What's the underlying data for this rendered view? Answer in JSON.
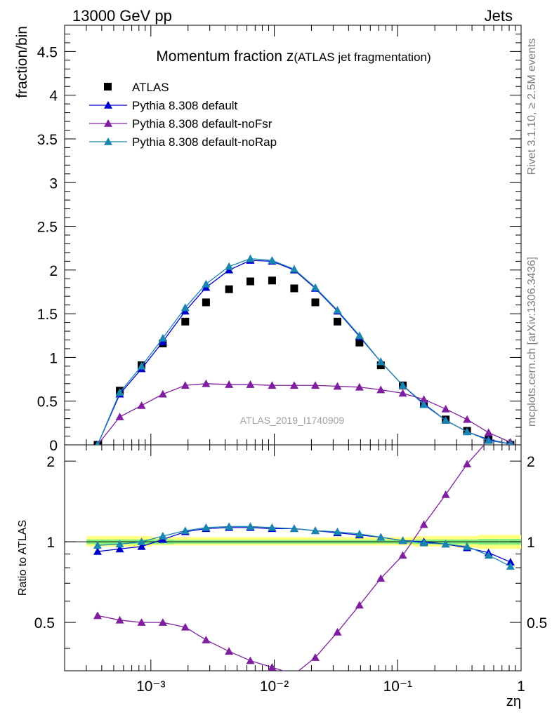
{
  "header": {
    "left": "13000 GeV pp",
    "right": "Jets"
  },
  "side": {
    "top": "Rivet 3.1.10, ≥ 2.5M events",
    "bottom": "mcplots.cern.ch [arXiv:1306.3436]"
  },
  "colors": {
    "atlas": "#000000",
    "default": "#0000cc",
    "noFsr": "#7f1fa0",
    "noRap": "#1a86b0",
    "band_outer": "#ffff80",
    "band_inner": "#80ef80"
  },
  "chart_data": {
    "type": "line",
    "title_main": "Momentum fraction z",
    "title_paren": "(ATLAS jet fragmentation)",
    "analysis_label": "ATLAS_2019_I1740909",
    "ylabel": "fraction/bin",
    "ratio_ylabel": "Ratio to ATLAS",
    "xlabel": "zη",
    "xscale": "log",
    "xlim": [
      0.0002,
      1
    ],
    "ylim": [
      0,
      4.8
    ],
    "ratio_ylim": [
      0.33,
      2.3
    ],
    "ratio_yscale": "log",
    "yticks": [
      "0",
      "0.5",
      "1",
      "1.5",
      "2",
      "2.5",
      "3",
      "3.5",
      "4",
      "4.5"
    ],
    "ratio_yticks": [
      "0.5",
      "1",
      "2"
    ],
    "xticks": [
      "10⁻³",
      "10⁻²",
      "10⁻¹",
      "1"
    ],
    "legend_position": "top-left",
    "x": [
      0.00037,
      0.00056,
      0.00084,
      0.00125,
      0.0019,
      0.0028,
      0.0043,
      0.0064,
      0.0096,
      0.0145,
      0.0215,
      0.0325,
      0.049,
      0.073,
      0.11,
      0.163,
      0.245,
      0.365,
      0.545,
      0.82
    ],
    "series": [
      {
        "name": "ATLAS",
        "style": "marker",
        "values": [
          0.0,
          0.62,
          0.91,
          1.16,
          1.41,
          1.63,
          1.78,
          1.87,
          1.88,
          1.79,
          1.63,
          1.41,
          1.17,
          0.91,
          0.68,
          0.47,
          0.29,
          0.16,
          0.06,
          0.0
        ]
      },
      {
        "name": "Pythia 8.308 default",
        "style": "line",
        "values": [
          0.0,
          0.58,
          0.87,
          1.18,
          1.53,
          1.8,
          2.0,
          2.11,
          2.1,
          2.0,
          1.79,
          1.53,
          1.24,
          0.95,
          0.68,
          0.47,
          0.28,
          0.15,
          0.06,
          0.01
        ],
        "ratio": [
          0.92,
          0.94,
          0.96,
          1.02,
          1.09,
          1.12,
          1.13,
          1.13,
          1.12,
          1.12,
          1.1,
          1.08,
          1.06,
          1.04,
          1.01,
          1.0,
          0.98,
          0.95,
          0.91,
          0.84
        ]
      },
      {
        "name": "Pythia 8.308 default-noFsr",
        "style": "line",
        "values": [
          0.0,
          0.32,
          0.45,
          0.58,
          0.68,
          0.7,
          0.69,
          0.69,
          0.68,
          0.68,
          0.68,
          0.67,
          0.66,
          0.63,
          0.59,
          0.52,
          0.41,
          0.29,
          0.14,
          0.03
        ],
        "ratio": [
          0.53,
          0.51,
          0.5,
          0.5,
          0.48,
          0.43,
          0.39,
          0.36,
          0.34,
          0.32,
          0.37,
          0.46,
          0.58,
          0.73,
          0.89,
          1.16,
          1.5,
          1.95,
          2.4,
          2.4
        ]
      },
      {
        "name": "Pythia 8.308 default-noRap",
        "style": "line",
        "values": [
          0.0,
          0.6,
          0.9,
          1.22,
          1.57,
          1.84,
          2.04,
          2.13,
          2.11,
          2.01,
          1.8,
          1.54,
          1.25,
          0.95,
          0.68,
          0.46,
          0.28,
          0.15,
          0.05,
          0.01
        ],
        "ratio": [
          0.97,
          0.98,
          1.0,
          1.05,
          1.1,
          1.13,
          1.14,
          1.14,
          1.13,
          1.12,
          1.1,
          1.09,
          1.07,
          1.04,
          1.01,
          0.99,
          0.98,
          0.96,
          0.89,
          0.81
        ]
      }
    ],
    "band_outer": [
      [
        0.96,
        1.05
      ],
      [
        0.96,
        1.05
      ],
      [
        0.96,
        1.05
      ],
      [
        0.97,
        1.04
      ],
      [
        0.97,
        1.04
      ],
      [
        0.97,
        1.04
      ],
      [
        0.97,
        1.04
      ],
      [
        0.97,
        1.04
      ],
      [
        0.97,
        1.04
      ],
      [
        0.97,
        1.04
      ],
      [
        0.97,
        1.04
      ],
      [
        0.97,
        1.04
      ],
      [
        0.97,
        1.04
      ],
      [
        0.97,
        1.04
      ],
      [
        0.97,
        1.04
      ],
      [
        0.96,
        1.05
      ],
      [
        0.96,
        1.05
      ],
      [
        0.95,
        1.05
      ],
      [
        0.94,
        1.06
      ],
      [
        0.94,
        1.06
      ]
    ],
    "band_inner": [
      [
        0.98,
        1.02
      ],
      [
        0.98,
        1.02
      ],
      [
        0.98,
        1.02
      ],
      [
        0.98,
        1.02
      ],
      [
        0.985,
        1.015
      ],
      [
        0.985,
        1.015
      ],
      [
        0.985,
        1.015
      ],
      [
        0.985,
        1.015
      ],
      [
        0.985,
        1.015
      ],
      [
        0.985,
        1.015
      ],
      [
        0.985,
        1.015
      ],
      [
        0.985,
        1.015
      ],
      [
        0.985,
        1.015
      ],
      [
        0.985,
        1.015
      ],
      [
        0.985,
        1.015
      ],
      [
        0.98,
        1.02
      ],
      [
        0.98,
        1.02
      ],
      [
        0.98,
        1.02
      ],
      [
        0.975,
        1.025
      ],
      [
        0.975,
        1.025
      ]
    ]
  }
}
